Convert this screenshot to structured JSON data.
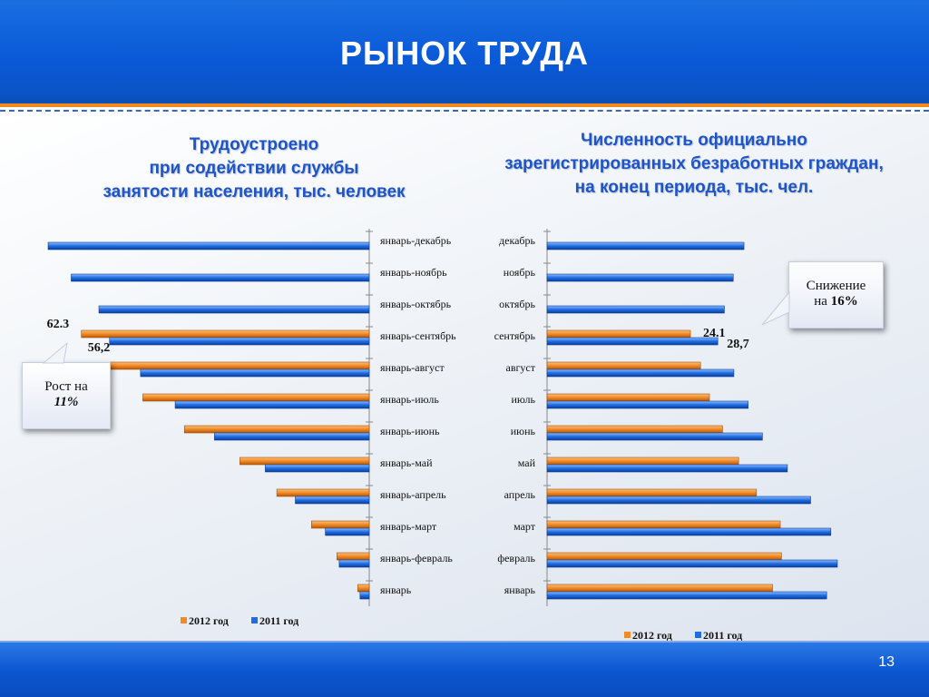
{
  "header": {
    "title": "РЫНОК ТРУДА"
  },
  "footer": {
    "page_number": "13"
  },
  "left": {
    "title_lines": [
      "Трудоустроено",
      "при содействии службы",
      "занятости населения, тыс. человек"
    ],
    "callout": {
      "line1": "Рост на",
      "value": "11%"
    }
  },
  "right": {
    "title_lines": [
      "Численность официально",
      "зарегистрированных безработных граждан,",
      "на конец периода, тыс. чел."
    ],
    "callout": {
      "line1": "Снижение",
      "line2_prefix": "на",
      "value": "16%"
    }
  },
  "chart_data": [
    {
      "type": "bar",
      "orientation": "horizontal",
      "categories": [
        "январь-декабрь",
        "январь-ноябрь",
        "январь-октябрь",
        "январь-сентябрь",
        "январь-август",
        "январь-июль",
        "январь-июнь",
        "январь-май",
        "январь-апрель",
        "январь-март",
        "январь-февраль",
        "январь"
      ],
      "series": [
        {
          "name": "2012 год",
          "color": "#f08a24",
          "values": [
            null,
            null,
            null,
            62.3,
            56.0,
            49.0,
            40.0,
            28.0,
            20.0,
            12.5,
            7.0,
            2.5
          ]
        },
        {
          "name": "2011 год",
          "color": "#1f6de3",
          "values": [
            69.5,
            64.5,
            58.5,
            56.2,
            49.5,
            42.0,
            33.5,
            22.5,
            16.0,
            9.5,
            6.5,
            2.0
          ]
        }
      ],
      "data_labels": [
        {
          "category": "январь-сентябрь",
          "series": "2012 год",
          "text": "62.3"
        },
        {
          "category": "январь-сентябрь",
          "series": "2011 год",
          "text": "56,2"
        }
      ],
      "legend": "bottom",
      "grid": false
    },
    {
      "type": "bar",
      "orientation": "horizontal",
      "categories": [
        "декабрь",
        "ноябрь",
        "октябрь",
        "сентябрь",
        "август",
        "июль",
        "июнь",
        "май",
        "апрель",
        "март",
        "февраль",
        "январь"
      ],
      "series": [
        {
          "name": "2012 год",
          "color": "#f08a24",
          "values": [
            null,
            null,
            null,
            24.1,
            25.8,
            27.3,
            29.5,
            32.2,
            35.2,
            39.2,
            39.4,
            37.9
          ]
        },
        {
          "name": "2011 год",
          "color": "#1f6de3",
          "values": [
            33.1,
            31.3,
            29.8,
            28.7,
            31.4,
            33.8,
            36.2,
            40.4,
            44.3,
            47.7,
            48.8,
            47.0
          ]
        }
      ],
      "data_labels": [
        {
          "category": "сентябрь",
          "series": "2012 год",
          "text": "24.1"
        },
        {
          "category": "сентябрь",
          "series": "2011 год",
          "text": "28,7"
        }
      ],
      "legend": "bottom",
      "grid": false
    }
  ]
}
